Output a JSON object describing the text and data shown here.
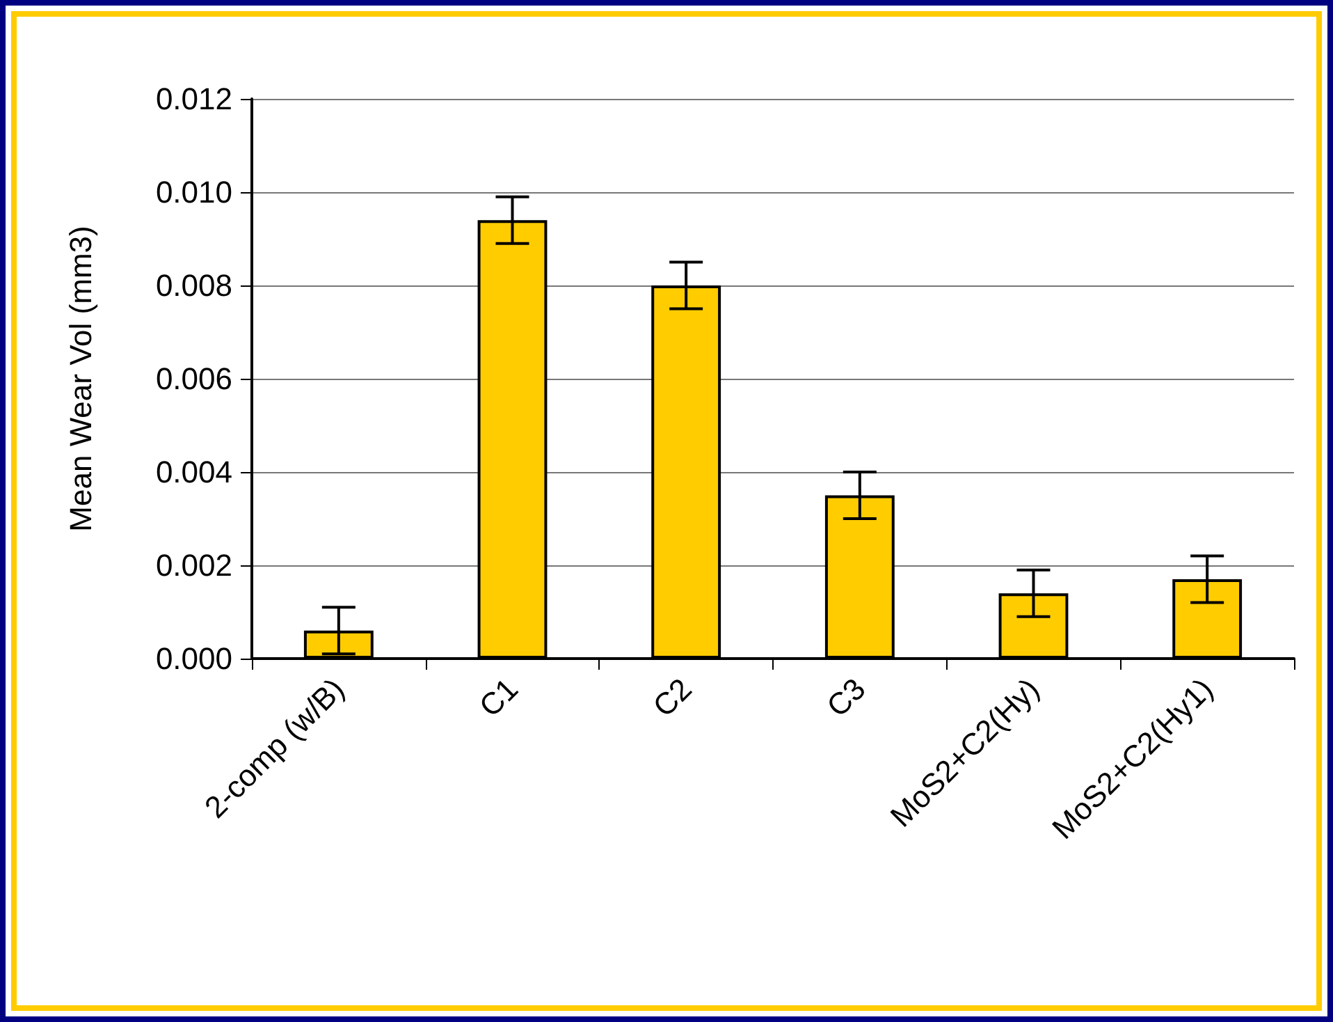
{
  "chart_data": {
    "type": "bar",
    "ylabel": "Mean Wear Vol (mm3)",
    "categories": [
      "2-comp (w/B)",
      "C1",
      "C2",
      "C3",
      "MoS2+C2(Hy)",
      "MoS2+C2(Hy1)"
    ],
    "values": [
      0.0006,
      0.0094,
      0.008,
      0.0035,
      0.0014,
      0.0017
    ],
    "errors": [
      0.0005,
      0.0005,
      0.0005,
      0.0005,
      0.0005,
      0.0005
    ],
    "color": "#ffcc00",
    "ylim": [
      0,
      0.012
    ],
    "yticks": [
      {
        "value": 0,
        "label": "0.000"
      },
      {
        "value": 0.002,
        "label": "0.002"
      },
      {
        "value": 0.004,
        "label": "0.004"
      },
      {
        "value": 0.006,
        "label": "0.006"
      },
      {
        "value": 0.008,
        "label": "0.008"
      },
      {
        "value": 0.01,
        "label": "0.010"
      },
      {
        "value": 0.012,
        "label": "0.012"
      }
    ],
    "grid": "y"
  }
}
